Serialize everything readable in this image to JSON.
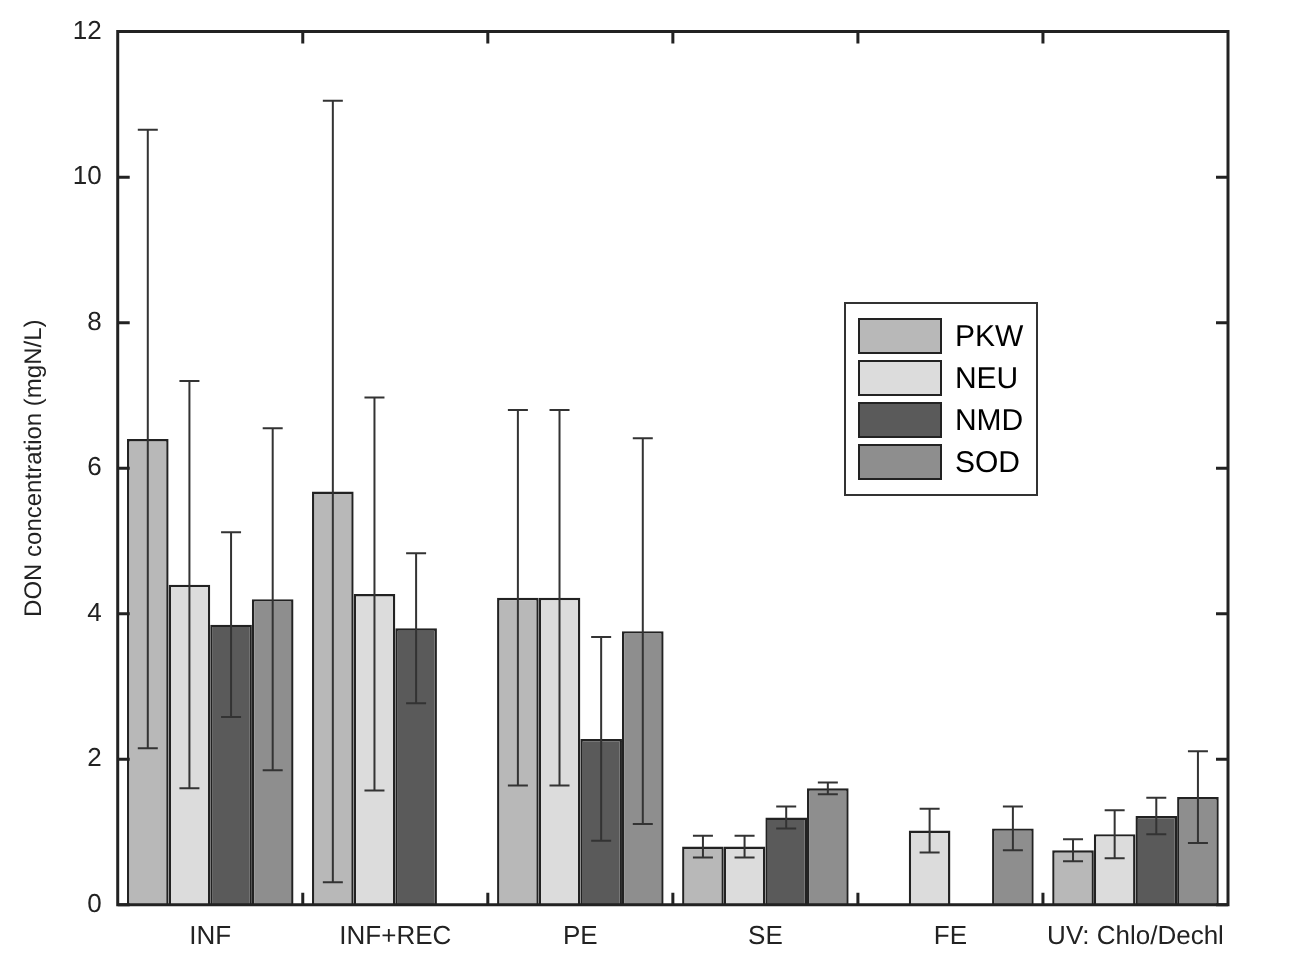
{
  "chart_data": {
    "type": "bar",
    "ylabel": "DON concentration (mgN/L)",
    "categories": [
      "INF",
      "INF+REC",
      "PE",
      "SE",
      "FE",
      "UV: Chlo/Dechl"
    ],
    "series": [
      {
        "name": "PKW",
        "color": "#b8b8b8",
        "values": [
          6.4,
          5.68,
          4.22,
          0.8,
          null,
          0.75
        ],
        "errors": [
          4.25,
          5.37,
          2.58,
          0.15,
          null,
          0.15
        ]
      },
      {
        "name": "NEU",
        "color": "#dcdcdc",
        "values": [
          4.4,
          4.27,
          4.22,
          0.8,
          1.02,
          0.97
        ],
        "errors": [
          2.8,
          2.7,
          2.58,
          0.15,
          0.3,
          0.33
        ]
      },
      {
        "name": "NMD",
        "color": "#5a5a5a",
        "values": [
          3.85,
          3.8,
          2.28,
          1.2,
          null,
          1.22
        ],
        "errors": [
          1.27,
          1.03,
          1.4,
          0.15,
          null,
          0.25
        ]
      },
      {
        "name": "SOD",
        "color": "#8e8e8e",
        "values": [
          4.2,
          null,
          3.76,
          1.6,
          1.05,
          1.48
        ],
        "errors": [
          2.35,
          null,
          2.65,
          0.08,
          0.3,
          0.63
        ]
      }
    ],
    "ylim": [
      0,
      12
    ],
    "yticks": [
      0,
      2,
      4,
      6,
      8,
      10,
      12
    ],
    "grid": false,
    "legend": "right"
  }
}
